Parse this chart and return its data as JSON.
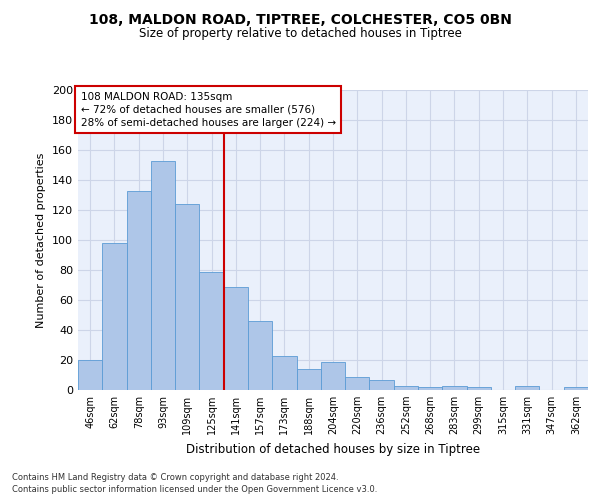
{
  "title_line1": "108, MALDON ROAD, TIPTREE, COLCHESTER, CO5 0BN",
  "title_line2": "Size of property relative to detached houses in Tiptree",
  "xlabel": "Distribution of detached houses by size in Tiptree",
  "ylabel": "Number of detached properties",
  "categories": [
    "46sqm",
    "62sqm",
    "78sqm",
    "93sqm",
    "109sqm",
    "125sqm",
    "141sqm",
    "157sqm",
    "173sqm",
    "188sqm",
    "204sqm",
    "220sqm",
    "236sqm",
    "252sqm",
    "268sqm",
    "283sqm",
    "299sqm",
    "315sqm",
    "331sqm",
    "347sqm",
    "362sqm"
  ],
  "values": [
    20,
    98,
    133,
    153,
    124,
    79,
    69,
    46,
    23,
    14,
    19,
    9,
    7,
    3,
    2,
    3,
    2,
    0,
    3,
    0,
    2
  ],
  "bar_color": "#aec6e8",
  "bar_edge_color": "#5b9bd5",
  "vline_x_index": 6,
  "vline_color": "#cc0000",
  "annotation_box_text": "108 MALDON ROAD: 135sqm\n← 72% of detached houses are smaller (576)\n28% of semi-detached houses are larger (224) →",
  "annotation_box_edge_color": "#cc0000",
  "ylim": [
    0,
    200
  ],
  "yticks": [
    0,
    20,
    40,
    60,
    80,
    100,
    120,
    140,
    160,
    180,
    200
  ],
  "grid_color": "#cdd5e8",
  "background_color": "#eaf0fb",
  "footnote_line1": "Contains HM Land Registry data © Crown copyright and database right 2024.",
  "footnote_line2": "Contains public sector information licensed under the Open Government Licence v3.0."
}
